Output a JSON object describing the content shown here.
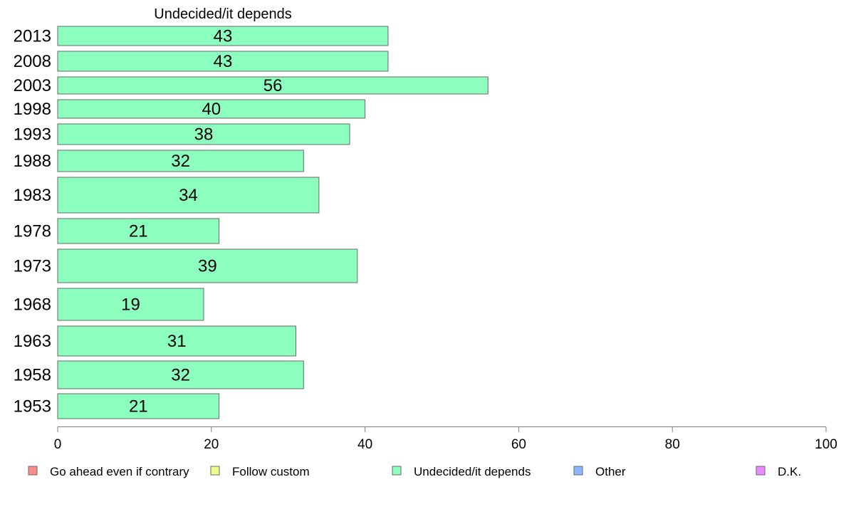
{
  "chart_data": {
    "type": "bar",
    "orientation": "horizontal",
    "panel_title": "Undecided/it depends",
    "categories": [
      "2013",
      "2008",
      "2003",
      "1998",
      "1993",
      "1988",
      "1983",
      "1978",
      "1973",
      "1968",
      "1963",
      "1958",
      "1953"
    ],
    "series": [
      {
        "name": "Undecided/it depends",
        "values": [
          43,
          43,
          56,
          40,
          38,
          32,
          34,
          21,
          39,
          19,
          31,
          32,
          21
        ],
        "color": "#8cffbf"
      }
    ],
    "value_labels": [
      "43",
      "43",
      "56",
      "40",
      "38",
      "32",
      "34",
      "21",
      "39",
      "19",
      "31",
      "32",
      "21"
    ],
    "xlim": [
      0,
      100
    ],
    "x_ticks": [
      0,
      20,
      40,
      60,
      80,
      100
    ],
    "x_tick_labels": [
      "0",
      "20",
      "40",
      "60",
      "80",
      "100"
    ],
    "grid": false,
    "legend_position": "bottom",
    "legend": [
      {
        "label": "Go ahead even if contrary",
        "color": "#ff8c8c"
      },
      {
        "label": "Follow custom",
        "color": "#ecff8c"
      },
      {
        "label": "Undecided/it depends",
        "color": "#8cffbf"
      },
      {
        "label": "Other",
        "color": "#8cb8ff"
      },
      {
        "label": "D.K.",
        "color": "#ea8cff"
      }
    ]
  },
  "colors": {
    "bar_stroke": "#6a6a6a",
    "axis": "#808080"
  }
}
